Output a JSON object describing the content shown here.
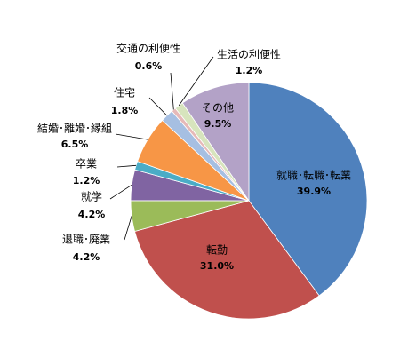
{
  "chart_data": {
    "type": "pie",
    "categories": [
      "就職･転職･転業",
      "転勤",
      "退職･廃業",
      "就学",
      "卒業",
      "結婚･離婚･縁組",
      "住宅",
      "交通の利便性",
      "生活の利便性",
      "その他"
    ],
    "values": [
      39.9,
      31.0,
      4.2,
      4.2,
      1.2,
      6.5,
      1.8,
      0.6,
      1.2,
      9.5
    ],
    "value_labels": [
      "39.9%",
      "31.0%",
      "4.2%",
      "4.2%",
      "1.2%",
      "6.5%",
      "1.8%",
      "0.6%",
      "1.2%",
      "9.5%"
    ],
    "colors": [
      "#4f81bd",
      "#c0504d",
      "#9bbb59",
      "#8064a2",
      "#4bacc6",
      "#f79646",
      "#a6bfe2",
      "#e6b9b8",
      "#d7e4bd",
      "#b3a2c7"
    ]
  }
}
